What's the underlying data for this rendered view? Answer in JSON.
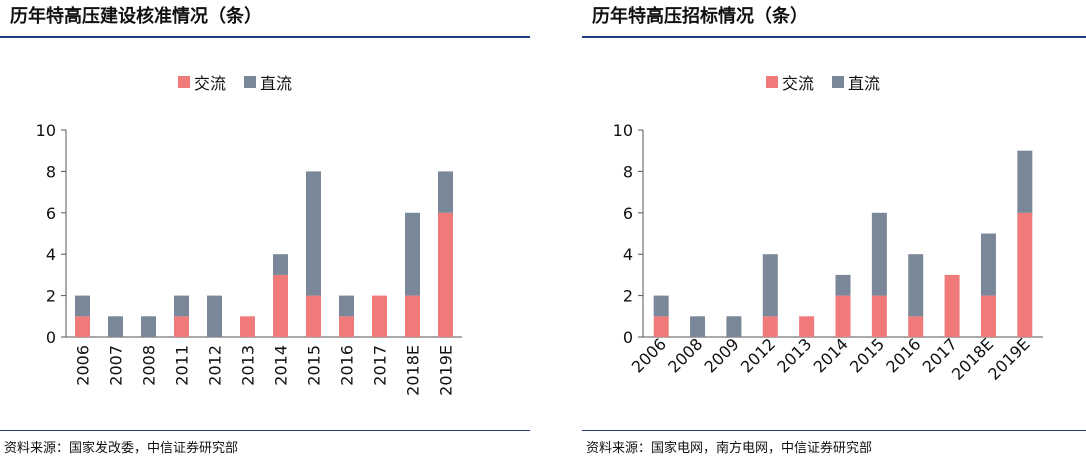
{
  "colors": {
    "ac": "#f07a7a",
    "dc": "#7a8798",
    "axis": "#555555",
    "rule": "#1f3f7a"
  },
  "left": {
    "title": "历年特高压建设核准情况（条）",
    "source": "资料来源：国家发改委，中信证券研究部",
    "legend": [
      "交流",
      "直流"
    ]
  },
  "right": {
    "title": "历年特高压招标情况（条）",
    "source": "资料来源：国家电网，南方电网，中信证券研究部",
    "legend": [
      "交流",
      "直流"
    ]
  },
  "chart_data": [
    {
      "type": "bar",
      "stacked": true,
      "title": "历年特高压建设核准情况（条）",
      "categories": [
        "2006",
        "2007",
        "2008",
        "2011",
        "2012",
        "2013",
        "2014",
        "2015",
        "2016",
        "2017",
        "2018E",
        "2019E"
      ],
      "series": [
        {
          "name": "交流",
          "values": [
            1,
            0,
            0,
            1,
            0,
            1,
            3,
            2,
            1,
            2,
            2,
            6
          ]
        },
        {
          "name": "直流",
          "values": [
            1,
            1,
            1,
            1,
            2,
            0,
            1,
            6,
            1,
            0,
            4,
            2
          ]
        }
      ],
      "yticks": [
        0,
        2,
        4,
        6,
        8,
        10
      ],
      "ylim": [
        0,
        10
      ],
      "grid": false,
      "legend_position": "top-center"
    },
    {
      "type": "bar",
      "stacked": true,
      "title": "历年特高压招标情况（条）",
      "categories": [
        "2006",
        "2008",
        "2009",
        "2012",
        "2013",
        "2014",
        "2015",
        "2016",
        "2017",
        "2018E",
        "2019E"
      ],
      "series": [
        {
          "name": "交流",
          "values": [
            1,
            0,
            0,
            1,
            1,
            2,
            2,
            1,
            3,
            2,
            6
          ]
        },
        {
          "name": "直流",
          "values": [
            1,
            1,
            1,
            3,
            0,
            1,
            4,
            3,
            0,
            3,
            3
          ]
        }
      ],
      "yticks": [
        0,
        2,
        4,
        6,
        8,
        10
      ],
      "ylim": [
        0,
        10
      ],
      "grid": false,
      "legend_position": "top-center"
    }
  ]
}
